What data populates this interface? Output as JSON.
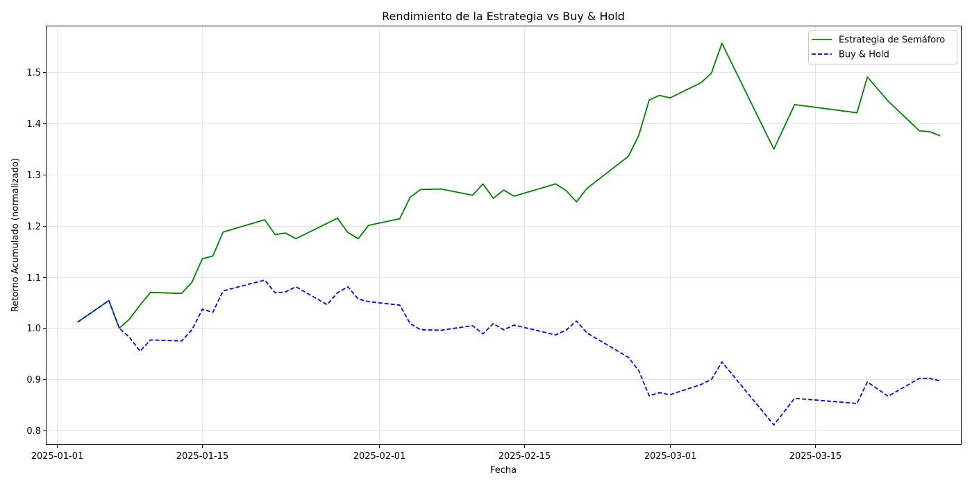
{
  "chart_data": {
    "type": "line",
    "title": "Rendimiento de la Estrategia vs Buy & Hold",
    "xlabel": "Fecha",
    "ylabel": "Retorno Acumulado (normalizado)",
    "xlim": [
      "2024-12-31",
      "2025-03-29"
    ],
    "ylim": [
      0.773,
      1.59
    ],
    "x_ticks": [
      "2025-01-01",
      "2025-01-15",
      "2025-02-01",
      "2025-02-15",
      "2025-03-01",
      "2025-03-15"
    ],
    "y_ticks": [
      0.8,
      0.9,
      1.0,
      1.1,
      1.2,
      1.3,
      1.4,
      1.5
    ],
    "grid": true,
    "legend_position": "top-right",
    "x": [
      "2025-01-03",
      "2025-01-06",
      "2025-01-07",
      "2025-01-08",
      "2025-01-09",
      "2025-01-10",
      "2025-01-13",
      "2025-01-14",
      "2025-01-15",
      "2025-01-16",
      "2025-01-17",
      "2025-01-21",
      "2025-01-22",
      "2025-01-23",
      "2025-01-24",
      "2025-01-27",
      "2025-01-28",
      "2025-01-29",
      "2025-01-30",
      "2025-01-31",
      "2025-02-03",
      "2025-02-04",
      "2025-02-05",
      "2025-02-07",
      "2025-02-10",
      "2025-02-11",
      "2025-02-12",
      "2025-02-13",
      "2025-02-14",
      "2025-02-18",
      "2025-02-19",
      "2025-02-20",
      "2025-02-21",
      "2025-02-25",
      "2025-02-26",
      "2025-02-27",
      "2025-02-28",
      "2025-03-01",
      "2025-03-04",
      "2025-03-05",
      "2025-03-06",
      "2025-03-11",
      "2025-03-13",
      "2025-03-19",
      "2025-03-20",
      "2025-03-22",
      "2025-03-25",
      "2025-03-26",
      "2025-03-27"
    ],
    "series": [
      {
        "name": "Estrategia de Semáforo",
        "color": "#008000",
        "style": "solid",
        "values": [
          1.012,
          1.054,
          1.0,
          1.018,
          1.045,
          1.07,
          1.068,
          1.09,
          1.136,
          1.141,
          1.188,
          1.212,
          1.183,
          1.186,
          1.175,
          1.205,
          1.215,
          1.187,
          1.175,
          1.201,
          1.214,
          1.256,
          1.271,
          1.272,
          1.26,
          1.282,
          1.254,
          1.27,
          1.258,
          1.282,
          1.269,
          1.247,
          1.273,
          1.336,
          1.377,
          1.446,
          1.455,
          1.45,
          1.48,
          1.499,
          1.557,
          1.35,
          1.437,
          1.421,
          1.491,
          1.444,
          1.386,
          1.384,
          1.376
        ]
      },
      {
        "name": "Buy & Hold",
        "color": "#0000ff",
        "style": "dashed",
        "values": [
          1.012,
          1.054,
          1.0,
          0.982,
          0.955,
          0.977,
          0.975,
          0.997,
          1.037,
          1.031,
          1.073,
          1.094,
          1.069,
          1.071,
          1.081,
          1.046,
          1.069,
          1.081,
          1.057,
          1.052,
          1.045,
          1.009,
          0.997,
          0.996,
          1.005,
          0.989,
          1.009,
          0.997,
          1.006,
          0.987,
          0.996,
          1.014,
          0.991,
          0.943,
          0.917,
          0.868,
          0.874,
          0.87,
          0.89,
          0.9,
          0.934,
          0.811,
          0.863,
          0.853,
          0.895,
          0.867,
          0.902,
          0.902,
          0.897
        ]
      }
    ]
  }
}
